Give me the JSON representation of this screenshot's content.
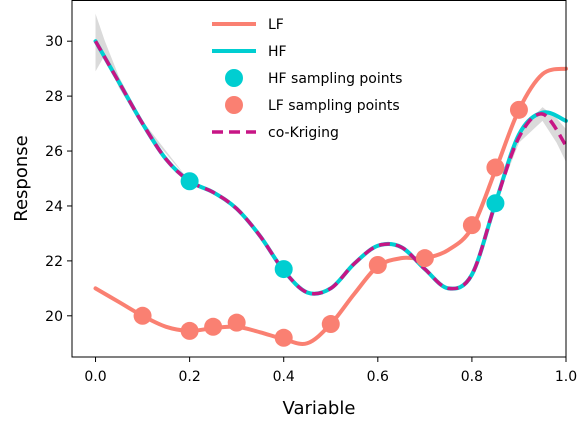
{
  "chart_data": {
    "type": "line",
    "xlabel": "Variable",
    "ylabel": "Response",
    "xlim": [
      -0.05,
      1.0
    ],
    "ylim": [
      18.5,
      31.5
    ],
    "x_ticks": [
      0.0,
      0.2,
      0.4,
      0.6,
      0.8,
      1.0
    ],
    "x_tick_labels": [
      "0.0",
      "0.2",
      "0.4",
      "0.6",
      "0.8",
      "1.0"
    ],
    "y_ticks": [
      20,
      22,
      24,
      26,
      28,
      30
    ],
    "y_tick_labels": [
      "20",
      "22",
      "24",
      "26",
      "28",
      "30"
    ],
    "grid": false,
    "legend_position": "top-center",
    "series": [
      {
        "name": "LF",
        "kind": "line",
        "color": "#FA8072",
        "points": [
          [
            0.0,
            21.0
          ],
          [
            0.05,
            20.5
          ],
          [
            0.1,
            20.0
          ],
          [
            0.15,
            19.6
          ],
          [
            0.2,
            19.45
          ],
          [
            0.25,
            19.55
          ],
          [
            0.3,
            19.6
          ],
          [
            0.35,
            19.4
          ],
          [
            0.4,
            19.15
          ],
          [
            0.45,
            19.0
          ],
          [
            0.5,
            19.7
          ],
          [
            0.55,
            20.8
          ],
          [
            0.6,
            21.8
          ],
          [
            0.65,
            22.1
          ],
          [
            0.7,
            22.1
          ],
          [
            0.75,
            22.4
          ],
          [
            0.8,
            23.2
          ],
          [
            0.85,
            25.3
          ],
          [
            0.9,
            27.5
          ],
          [
            0.95,
            28.8
          ],
          [
            1.0,
            29.0
          ]
        ]
      },
      {
        "name": "HF",
        "kind": "line",
        "color": "#00CED1",
        "points": [
          [
            0.0,
            30.0
          ],
          [
            0.05,
            28.5
          ],
          [
            0.1,
            27.0
          ],
          [
            0.15,
            25.7
          ],
          [
            0.2,
            24.9
          ],
          [
            0.25,
            24.5
          ],
          [
            0.3,
            23.9
          ],
          [
            0.35,
            22.9
          ],
          [
            0.4,
            21.65
          ],
          [
            0.45,
            20.85
          ],
          [
            0.5,
            21.0
          ],
          [
            0.55,
            21.9
          ],
          [
            0.6,
            22.55
          ],
          [
            0.65,
            22.5
          ],
          [
            0.7,
            21.7
          ],
          [
            0.75,
            21.0
          ],
          [
            0.8,
            21.5
          ],
          [
            0.85,
            24.1
          ],
          [
            0.9,
            26.6
          ],
          [
            0.95,
            27.4
          ],
          [
            1.0,
            27.1
          ]
        ]
      },
      {
        "name": "HF sampling points",
        "kind": "scatter",
        "color": "#00CED1",
        "points": [
          [
            0.2,
            24.9
          ],
          [
            0.4,
            21.7
          ],
          [
            0.85,
            24.1
          ]
        ]
      },
      {
        "name": "LF sampling points",
        "kind": "scatter",
        "color": "#FA8072",
        "points": [
          [
            0.1,
            20.0
          ],
          [
            0.2,
            19.45
          ],
          [
            0.25,
            19.6
          ],
          [
            0.3,
            19.75
          ],
          [
            0.4,
            19.2
          ],
          [
            0.5,
            19.7
          ],
          [
            0.6,
            21.85
          ],
          [
            0.7,
            22.1
          ],
          [
            0.8,
            23.3
          ],
          [
            0.85,
            25.4
          ],
          [
            0.9,
            27.5
          ]
        ]
      },
      {
        "name": "co-Kriging",
        "kind": "dashed-line",
        "color": "#C71585",
        "points": [
          [
            0.0,
            30.0
          ],
          [
            0.05,
            28.5
          ],
          [
            0.1,
            27.0
          ],
          [
            0.15,
            25.7
          ],
          [
            0.2,
            24.9
          ],
          [
            0.25,
            24.5
          ],
          [
            0.3,
            23.9
          ],
          [
            0.35,
            22.9
          ],
          [
            0.4,
            21.65
          ],
          [
            0.45,
            20.85
          ],
          [
            0.5,
            21.0
          ],
          [
            0.55,
            21.9
          ],
          [
            0.6,
            22.55
          ],
          [
            0.65,
            22.5
          ],
          [
            0.7,
            21.7
          ],
          [
            0.75,
            21.0
          ],
          [
            0.8,
            21.5
          ],
          [
            0.85,
            24.1
          ],
          [
            0.9,
            26.5
          ],
          [
            0.95,
            27.35
          ],
          [
            1.0,
            26.2
          ]
        ]
      }
    ],
    "uncertainty_band": {
      "color": "#BBBBBB",
      "upper": [
        [
          0.0,
          31.0
        ],
        [
          0.02,
          30.0
        ],
        [
          0.05,
          28.7
        ],
        [
          0.1,
          27.1
        ],
        [
          0.2,
          24.9
        ],
        [
          0.8,
          21.5
        ],
        [
          0.85,
          24.1
        ],
        [
          0.9,
          26.7
        ],
        [
          0.95,
          27.6
        ],
        [
          0.98,
          27.2
        ],
        [
          1.0,
          26.8
        ]
      ],
      "lower": [
        [
          0.0,
          28.9
        ],
        [
          0.02,
          29.5
        ],
        [
          0.05,
          28.3
        ],
        [
          0.1,
          26.9
        ],
        [
          0.2,
          24.9
        ],
        [
          0.8,
          21.5
        ],
        [
          0.85,
          24.1
        ],
        [
          0.9,
          26.3
        ],
        [
          0.95,
          27.1
        ],
        [
          0.98,
          26.3
        ],
        [
          1.0,
          25.6
        ]
      ]
    }
  }
}
